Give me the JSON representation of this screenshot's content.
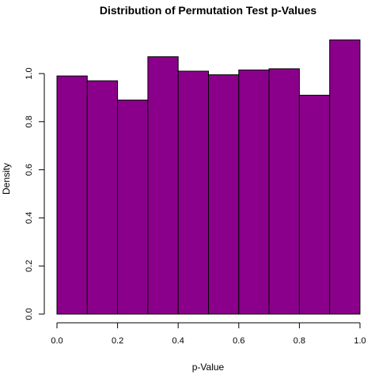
{
  "chart_data": {
    "type": "bar",
    "subtype": "histogram",
    "title": "Distribution of Permutation Test p-Values",
    "xlabel": "p-Value",
    "ylabel": "Density",
    "bin_edges": [
      0.0,
      0.1,
      0.2,
      0.3,
      0.4,
      0.5,
      0.6,
      0.7,
      0.8,
      0.9,
      1.0
    ],
    "values": [
      0.99,
      0.97,
      0.89,
      1.07,
      1.01,
      0.995,
      1.015,
      1.02,
      0.91,
      1.14
    ],
    "xlim": [
      0.0,
      1.0
    ],
    "ylim": [
      0.0,
      1.14
    ],
    "x_ticks": [
      "0.0",
      "0.2",
      "0.4",
      "0.6",
      "0.8",
      "1.0"
    ],
    "y_ticks": [
      "0.0",
      "0.2",
      "0.4",
      "0.6",
      "0.8",
      "1.0"
    ],
    "grid": false,
    "legend": "none",
    "bar_color": "#8b008b",
    "edge_color": "#000000"
  }
}
